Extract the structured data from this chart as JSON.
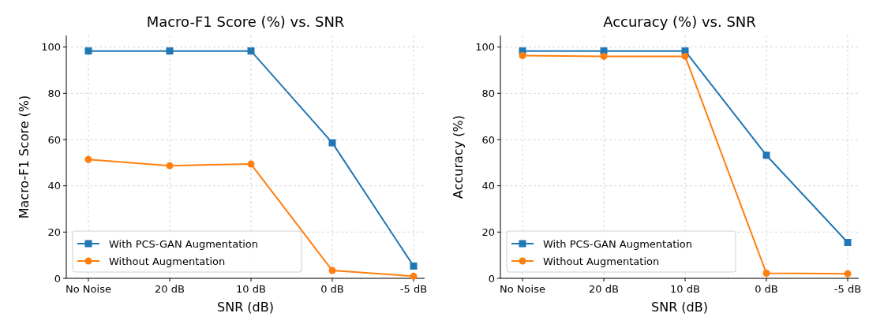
{
  "chart_data": [
    {
      "type": "line",
      "title": "Macro-F1 Score (%) vs. SNR",
      "xlabel": "SNR (dB)",
      "ylabel": "Macro-F1 Score (%)",
      "categories": [
        "No Noise",
        "20 dB",
        "10 dB",
        "0 dB",
        "-5 dB"
      ],
      "ylim": [
        0,
        105
      ],
      "yticks": [
        0,
        20,
        40,
        60,
        80,
        100
      ],
      "grid": true,
      "legend": "bottom left",
      "series": [
        {
          "name": "With PCS-GAN Augmentation",
          "color": "#1f77b4",
          "marker": "square",
          "values": [
            98.3,
            98.3,
            98.3,
            58.6,
            5.3
          ]
        },
        {
          "name": "Without Augmentation",
          "color": "#ff7f0e",
          "marker": "circle",
          "values": [
            51.4,
            48.7,
            49.4,
            3.4,
            0.9
          ]
        }
      ]
    },
    {
      "type": "line",
      "title": "Accuracy (%) vs. SNR",
      "xlabel": "SNR (dB)",
      "ylabel": "Accuracy (%)",
      "categories": [
        "No Noise",
        "20 dB",
        "10 dB",
        "0 dB",
        "-5 dB"
      ],
      "ylim": [
        0,
        105
      ],
      "yticks": [
        0,
        20,
        40,
        60,
        80,
        100
      ],
      "grid": true,
      "legend": "bottom left",
      "series": [
        {
          "name": "With PCS-GAN Augmentation",
          "color": "#1f77b4",
          "marker": "square",
          "values": [
            98.3,
            98.3,
            98.3,
            53.2,
            15.5
          ]
        },
        {
          "name": "Without Augmentation",
          "color": "#ff7f0e",
          "marker": "circle",
          "values": [
            96.3,
            96.0,
            96.0,
            2.2,
            2.0
          ]
        }
      ]
    }
  ]
}
